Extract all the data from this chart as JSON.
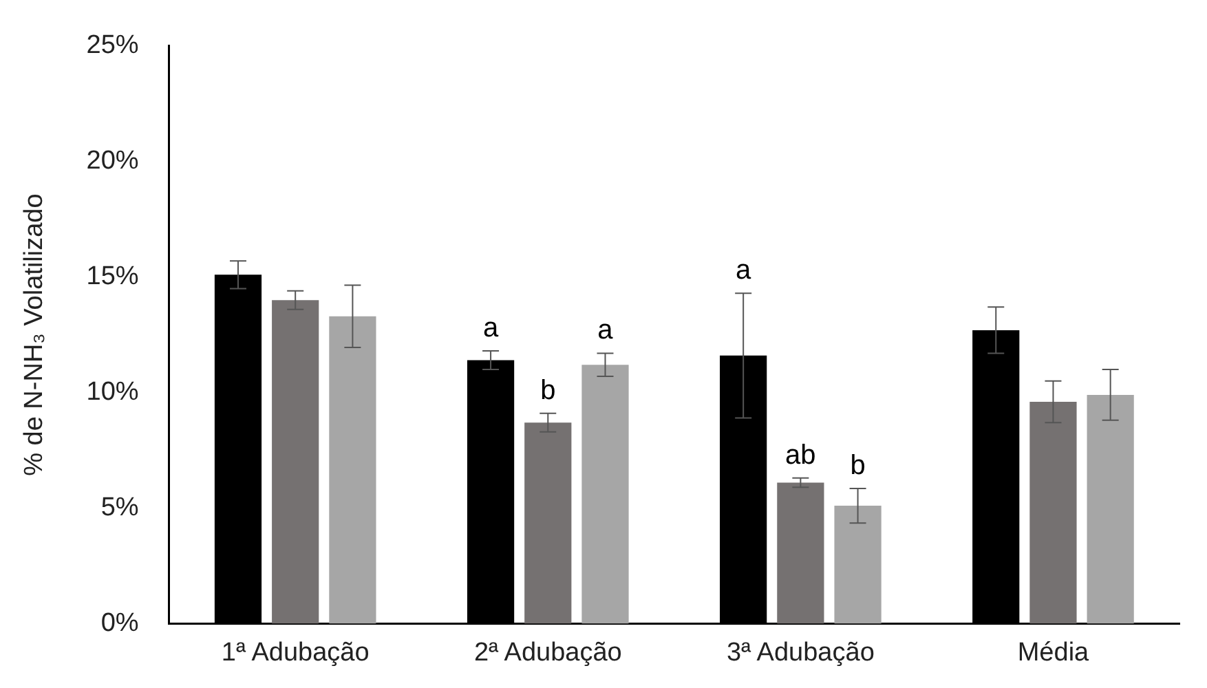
{
  "chart_data": {
    "type": "bar",
    "ylabel": "% de N-NH₃ Volatilizado",
    "categories": [
      "1ª Adubação",
      "2ª Adubação",
      "3ª Adubação",
      "Média"
    ],
    "series": [
      {
        "color": "#000000",
        "values": [
          15.1,
          11.4,
          11.6,
          12.7
        ],
        "errors": [
          0.6,
          0.4,
          2.7,
          1.0
        ],
        "value_labels": [
          null,
          "a",
          "a",
          null
        ]
      },
      {
        "color": "#757171",
        "values": [
          14.0,
          8.7,
          6.1,
          9.6
        ],
        "errors": [
          0.4,
          0.4,
          0.2,
          0.9
        ],
        "value_labels": [
          null,
          "b",
          "ab",
          null
        ]
      },
      {
        "color": "#a6a6a6",
        "values": [
          13.3,
          11.2,
          5.1,
          9.9
        ],
        "errors": [
          1.35,
          0.5,
          0.75,
          1.1
        ],
        "value_labels": [
          null,
          "a",
          "b",
          null
        ]
      }
    ],
    "ylim": [
      0,
      25
    ],
    "yticks": [
      {
        "value": 0,
        "label": "0%"
      },
      {
        "value": 5,
        "label": "5%"
      },
      {
        "value": 10,
        "label": "10%"
      },
      {
        "value": 15,
        "label": "15%"
      },
      {
        "value": 20,
        "label": "20%"
      },
      {
        "value": 25,
        "label": "25%"
      }
    ],
    "grid": false,
    "legend": false
  }
}
